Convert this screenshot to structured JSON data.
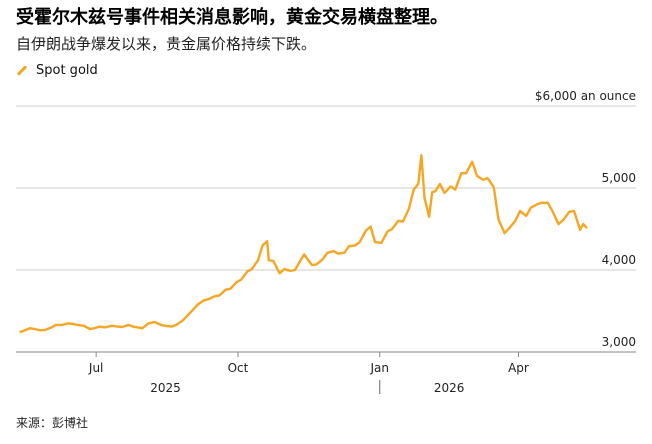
{
  "header": {
    "title": "受霍尔木兹号事件相关消息影响，黄金交易横盘整理。",
    "subtitle": "自伊朗战争爆发以来，贵金属价格持续下跌。"
  },
  "legend": {
    "label": "Spot gold",
    "color": "#f5a623"
  },
  "footer": {
    "source": "来源：彭博社"
  },
  "chart_data": {
    "type": "line",
    "series": [
      {
        "name": "Spot gold",
        "color": "#f5a623",
        "points": [
          [
            "2025-05-13",
            3245
          ],
          [
            "2025-05-15",
            3260
          ],
          [
            "2025-05-19",
            3290
          ],
          [
            "2025-05-22",
            3280
          ],
          [
            "2025-05-26",
            3265
          ],
          [
            "2025-05-29",
            3270
          ],
          [
            "2025-06-02",
            3300
          ],
          [
            "2025-06-05",
            3330
          ],
          [
            "2025-06-09",
            3330
          ],
          [
            "2025-06-13",
            3350
          ],
          [
            "2025-06-16",
            3340
          ],
          [
            "2025-06-19",
            3330
          ],
          [
            "2025-06-23",
            3320
          ],
          [
            "2025-06-27",
            3280
          ],
          [
            "2025-06-30",
            3290
          ],
          [
            "2025-07-03",
            3310
          ],
          [
            "2025-07-07",
            3300
          ],
          [
            "2025-07-11",
            3320
          ],
          [
            "2025-07-15",
            3310
          ],
          [
            "2025-07-18",
            3305
          ],
          [
            "2025-07-22",
            3330
          ],
          [
            "2025-07-25",
            3310
          ],
          [
            "2025-07-28",
            3300
          ],
          [
            "2025-07-31",
            3290
          ],
          [
            "2025-08-04",
            3350
          ],
          [
            "2025-08-08",
            3365
          ],
          [
            "2025-08-12",
            3330
          ],
          [
            "2025-08-15",
            3320
          ],
          [
            "2025-08-19",
            3310
          ],
          [
            "2025-08-22",
            3330
          ],
          [
            "2025-08-26",
            3380
          ],
          [
            "2025-08-29",
            3440
          ],
          [
            "2025-09-02",
            3520
          ],
          [
            "2025-09-05",
            3580
          ],
          [
            "2025-09-09",
            3630
          ],
          [
            "2025-09-12",
            3645
          ],
          [
            "2025-09-16",
            3680
          ],
          [
            "2025-09-19",
            3690
          ],
          [
            "2025-09-23",
            3760
          ],
          [
            "2025-09-26",
            3770
          ],
          [
            "2025-09-30",
            3850
          ],
          [
            "2025-10-03",
            3880
          ],
          [
            "2025-10-07",
            3980
          ],
          [
            "2025-10-10",
            4010
          ],
          [
            "2025-10-14",
            4120
          ],
          [
            "2025-10-17",
            4300
          ],
          [
            "2025-10-20",
            4350
          ],
          [
            "2025-10-21",
            4120
          ],
          [
            "2025-10-24",
            4110
          ],
          [
            "2025-10-28",
            3960
          ],
          [
            "2025-10-31",
            4010
          ],
          [
            "2025-11-04",
            3990
          ],
          [
            "2025-11-07",
            4000
          ],
          [
            "2025-11-11",
            4130
          ],
          [
            "2025-11-13",
            4190
          ],
          [
            "2025-11-18",
            4060
          ],
          [
            "2025-11-21",
            4070
          ],
          [
            "2025-11-25",
            4130
          ],
          [
            "2025-11-28",
            4210
          ],
          [
            "2025-12-02",
            4230
          ],
          [
            "2025-12-05",
            4200
          ],
          [
            "2025-12-09",
            4210
          ],
          [
            "2025-12-12",
            4290
          ],
          [
            "2025-12-16",
            4300
          ],
          [
            "2025-12-19",
            4340
          ],
          [
            "2025-12-23",
            4480
          ],
          [
            "2025-12-26",
            4530
          ],
          [
            "2025-12-29",
            4340
          ],
          [
            "2026-01-02",
            4330
          ],
          [
            "2026-01-06",
            4470
          ],
          [
            "2026-01-09",
            4500
          ],
          [
            "2026-01-13",
            4600
          ],
          [
            "2026-01-16",
            4590
          ],
          [
            "2026-01-20",
            4750
          ],
          [
            "2026-01-23",
            4980
          ],
          [
            "2026-01-26",
            5050
          ],
          [
            "2026-01-28",
            5400
          ],
          [
            "2026-01-30",
            4880
          ],
          [
            "2026-02-02",
            4650
          ],
          [
            "2026-02-04",
            4950
          ],
          [
            "2026-02-06",
            4960
          ],
          [
            "2026-02-09",
            5050
          ],
          [
            "2026-02-12",
            4940
          ],
          [
            "2026-02-16",
            5020
          ],
          [
            "2026-02-19",
            4980
          ],
          [
            "2026-02-23",
            5180
          ],
          [
            "2026-02-26",
            5180
          ],
          [
            "2026-03-02",
            5320
          ],
          [
            "2026-03-05",
            5150
          ],
          [
            "2026-03-09",
            5100
          ],
          [
            "2026-03-12",
            5120
          ],
          [
            "2026-03-16",
            5010
          ],
          [
            "2026-03-19",
            4620
          ],
          [
            "2026-03-23",
            4450
          ],
          [
            "2026-03-26",
            4510
          ],
          [
            "2026-03-30",
            4600
          ],
          [
            "2026-04-02",
            4720
          ],
          [
            "2026-04-06",
            4660
          ],
          [
            "2026-04-09",
            4760
          ],
          [
            "2026-04-13",
            4800
          ],
          [
            "2026-04-16",
            4820
          ],
          [
            "2026-04-20",
            4820
          ],
          [
            "2026-04-23",
            4720
          ],
          [
            "2026-04-27",
            4560
          ],
          [
            "2026-04-30",
            4610
          ],
          [
            "2026-05-04",
            4710
          ],
          [
            "2026-05-07",
            4720
          ],
          [
            "2026-05-11",
            4490
          ],
          [
            "2026-05-13",
            4560
          ],
          [
            "2026-05-15",
            4520
          ]
        ]
      }
    ],
    "x_range": [
      "2025-05-10",
      "2026-05-20"
    ],
    "x_ticks": [
      {
        "date": "2025-07-01",
        "label": "Jul"
      },
      {
        "date": "2025-10-01",
        "label": "Oct"
      },
      {
        "date": "2026-01-01",
        "label": "Jan"
      },
      {
        "date": "2026-04-01",
        "label": "Apr"
      }
    ],
    "x_year_labels": [
      {
        "date": "2025-08-15",
        "label": "2025"
      },
      {
        "date": "2026-02-15",
        "label": "2026"
      }
    ],
    "y_ticks": [
      {
        "value": 3000,
        "label": "3,000"
      },
      {
        "value": 4000,
        "label": "4,000"
      },
      {
        "value": 5000,
        "label": "5,000"
      },
      {
        "value": 6000,
        "label": "$6,000 an ounce"
      }
    ],
    "ylim": [
      3000,
      6000
    ],
    "grid": true
  }
}
